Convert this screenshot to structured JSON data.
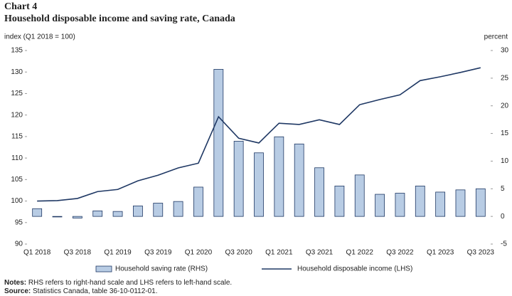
{
  "chart_data": {
    "type": "bar+line",
    "label": "Chart 4",
    "title": "Household disposable income and saving rate, Canada",
    "y_label": "index (Q1 2018 = 100)",
    "y2_label": "percent",
    "categories": [
      "Q1 2018",
      null,
      "Q3 2018",
      null,
      "Q1 2019",
      null,
      "Q3 2019",
      null,
      "Q1 2020",
      null,
      "Q3 2020",
      null,
      "Q1 2021",
      null,
      "Q3 2021",
      null,
      "Q1 2022",
      null,
      "Q3 2022",
      null,
      "Q1 2023",
      null,
      "Q3 2023"
    ],
    "series": [
      {
        "name": "Household saving rate (RHS)",
        "type": "bar",
        "axis": "y2",
        "color": "#b8cce4",
        "edgecolor": "#1f3864",
        "values": [
          1.4,
          -0.1,
          -0.3,
          1.0,
          0.9,
          1.9,
          2.4,
          2.7,
          5.3,
          26.6,
          13.6,
          11.5,
          14.4,
          13.1,
          8.8,
          5.5,
          7.5,
          4.0,
          4.2,
          5.5,
          4.4,
          4.8,
          5.0
        ]
      },
      {
        "name": "Household disposable income (LHS)",
        "type": "line",
        "axis": "y",
        "color": "#1f3864",
        "values": [
          100.0,
          100.1,
          100.6,
          102.2,
          102.7,
          104.7,
          106.0,
          107.7,
          108.8,
          119.6,
          114.6,
          113.5,
          118.1,
          117.8,
          118.9,
          117.8,
          122.4,
          123.6,
          124.7,
          128.0,
          128.9,
          129.9,
          131.0
        ]
      }
    ],
    "ylim": [
      90,
      135
    ],
    "yticks": [
      90,
      95,
      100,
      105,
      110,
      115,
      120,
      125,
      130,
      135
    ],
    "y2lim": [
      -5,
      30
    ],
    "y2ticks": [
      -5,
      0,
      5,
      10,
      15,
      20,
      25,
      30
    ],
    "notes": [
      {
        "label": "Notes:",
        "text": "RHS refers to right-hand scale and LHS refers to left-hand scale."
      },
      {
        "label": "Source:",
        "text": "Statistics Canada, table 36-10-0112-01."
      }
    ]
  }
}
